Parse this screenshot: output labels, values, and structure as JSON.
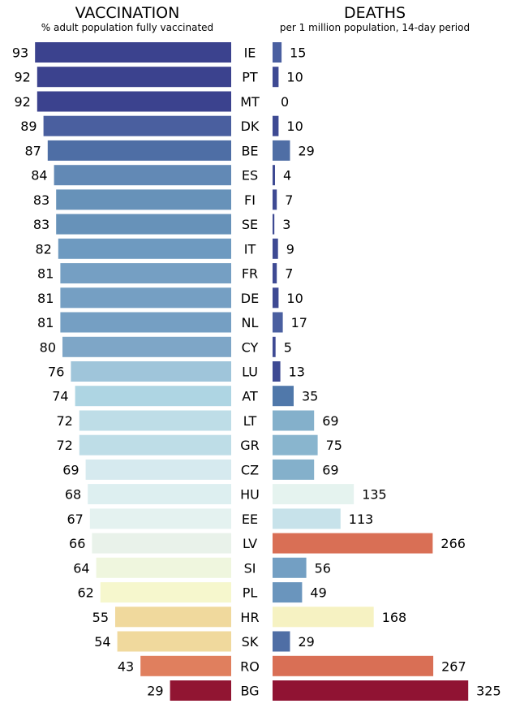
{
  "chart_data": [
    {
      "type": "bar",
      "orientation": "horizontal",
      "title": "VACCINATION",
      "subtitle": "% adult population fully vaccinated",
      "categories": [
        "IE",
        "PT",
        "MT",
        "DK",
        "BE",
        "ES",
        "FI",
        "SE",
        "IT",
        "FR",
        "DE",
        "NL",
        "CY",
        "LU",
        "AT",
        "LT",
        "GR",
        "CZ",
        "HU",
        "EE",
        "LV",
        "SI",
        "PL",
        "HR",
        "SK",
        "RO",
        "BG"
      ],
      "values": [
        93,
        92,
        92,
        89,
        87,
        84,
        83,
        83,
        82,
        81,
        81,
        81,
        80,
        76,
        74,
        72,
        72,
        69,
        68,
        67,
        66,
        64,
        62,
        55,
        54,
        43,
        29
      ],
      "colors": [
        "#3b428e",
        "#3b428e",
        "#3b428e",
        "#4a5f9f",
        "#4e6ea5",
        "#6289b5",
        "#6792b9",
        "#6792b9",
        "#6e9ac0",
        "#759fc3",
        "#759fc3",
        "#759fc3",
        "#7ea6c7",
        "#9fc5da",
        "#aed5e3",
        "#bedde7",
        "#bedde7",
        "#d6eaef",
        "#ddeff0",
        "#e4f2f0",
        "#e9f2ea",
        "#eff6de",
        "#f6f7cd",
        "#f0d99d",
        "#f0d99d",
        "#e07f5e",
        "#911532"
      ],
      "xlim": [
        0,
        100
      ],
      "direction": "right-to-left"
    },
    {
      "type": "bar",
      "orientation": "horizontal",
      "title": "DEATHS",
      "subtitle": "per 1 million population, 14-day period",
      "categories": [
        "IE",
        "PT",
        "MT",
        "DK",
        "BE",
        "ES",
        "FI",
        "SE",
        "IT",
        "FR",
        "DE",
        "NL",
        "CY",
        "LU",
        "AT",
        "LT",
        "GR",
        "CZ",
        "HU",
        "EE",
        "LV",
        "SI",
        "PL",
        "HR",
        "SK",
        "RO",
        "BG"
      ],
      "values": [
        15,
        10,
        0,
        10,
        29,
        4,
        7,
        3,
        9,
        7,
        10,
        17,
        5,
        13,
        35,
        69,
        75,
        69,
        135,
        113,
        266,
        56,
        49,
        168,
        29,
        267,
        325
      ],
      "colors": [
        "#4a5fa0",
        "#3e4a93",
        "#3e4a93",
        "#3e4a93",
        "#4f6ea5",
        "#3e4a93",
        "#3e4a93",
        "#3e4a93",
        "#3e4a93",
        "#3e4a93",
        "#3e4a93",
        "#4a5fa0",
        "#3e4a93",
        "#3e4a93",
        "#5078aa",
        "#84b0cb",
        "#89b5ce",
        "#84b0cb",
        "#e5f3ef",
        "#c7e2ea",
        "#d96f55",
        "#739fc3",
        "#6a95bd",
        "#f6f2c2",
        "#4f6ea5",
        "#d96f55",
        "#901333"
      ],
      "xlim": [
        0,
        330
      ]
    }
  ]
}
